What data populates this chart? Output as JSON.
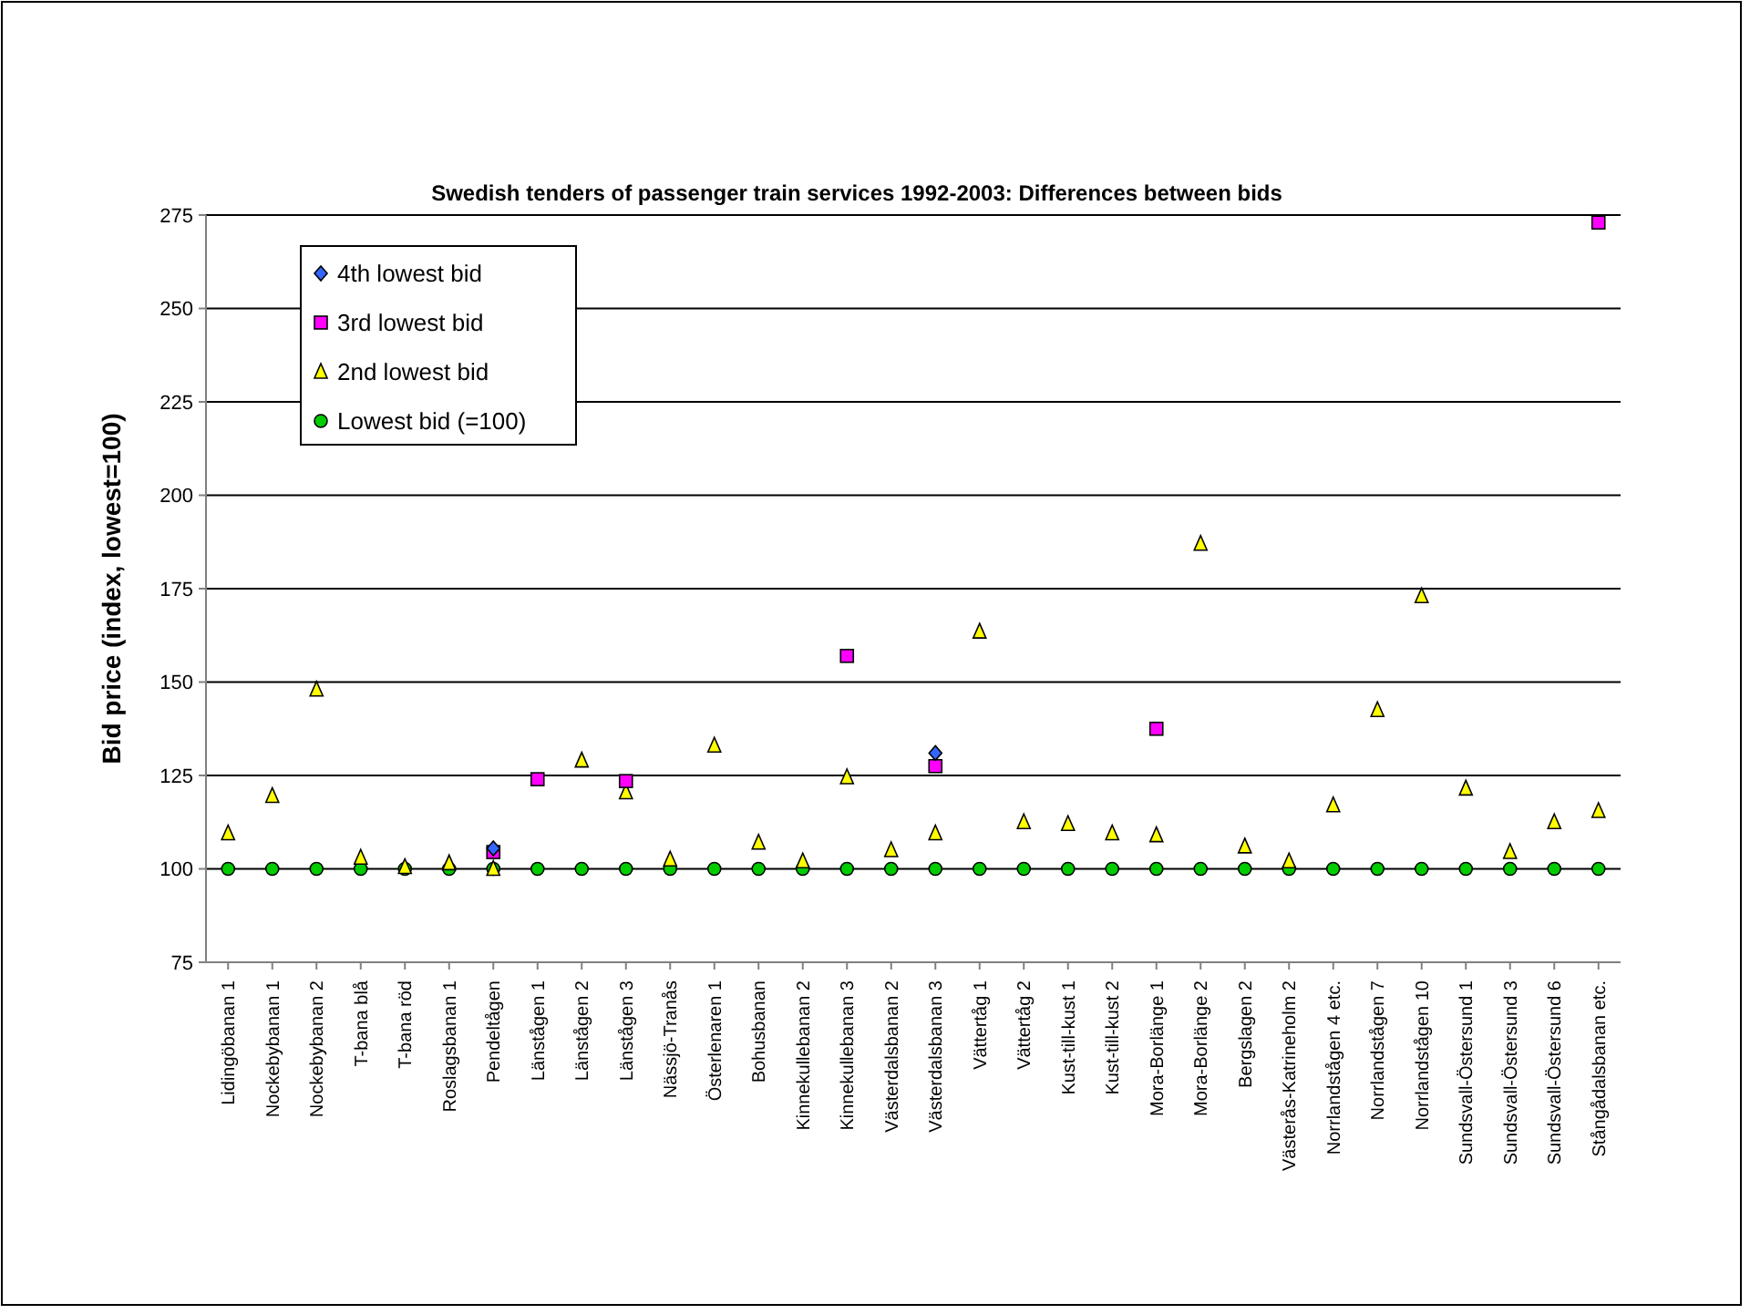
{
  "chart_data": {
    "type": "scatter",
    "title": "Swedish tenders of passenger train services 1992-2003: Differences between bids",
    "ylabel": "Bid price (index, lowest=100)",
    "categories": [
      "Lidingöbanan 1",
      "Nockebybanan 1",
      "Nockebybanan 2",
      "T-bana blå",
      "T-bana röd",
      "Roslagsbanan 1",
      "Pendeltågen",
      "Länstågen 1",
      "Länstågen 2",
      "Länstågen 3",
      "Nässjö-Tranås",
      "Österlenaren 1",
      "Bohusbanan",
      "Kinnekullebanan 2",
      "Kinnekullebanan 3",
      "Västerdalsbanan 2",
      "Västerdalsbanan 3",
      "Vättertåg 1",
      "Vättertåg 2",
      "Kust-till-kust 1",
      "Kust-till-kust 2",
      "Mora-Borlänge 1",
      "Mora-Borlänge 2",
      "Bergslagen 2",
      "Västerås-Katrineholm 2",
      "Norrlandstågen 4 etc.",
      "Norrlandstågen 7",
      "Norrlandstågen 10",
      "Sundsvall-Östersund 1",
      "Sundsvall-Östersund 3",
      "Sundsvall-Östersund 6",
      "Stångådalsbanan etc."
    ],
    "ylim": [
      75,
      275
    ],
    "yticks": [
      75,
      100,
      125,
      150,
      175,
      200,
      225,
      250,
      275
    ],
    "grid": "y",
    "legend": "top left",
    "series": [
      {
        "name": "4th lowest bid",
        "color": "#3366ff",
        "marker": "diamond",
        "values": [
          null,
          null,
          null,
          null,
          null,
          null,
          105.5,
          null,
          null,
          null,
          null,
          null,
          null,
          null,
          null,
          null,
          131,
          null,
          null,
          null,
          null,
          null,
          null,
          null,
          null,
          null,
          null,
          null,
          null,
          null,
          null,
          null
        ]
      },
      {
        "name": "3rd lowest bid",
        "color": "#ff00ff",
        "marker": "square",
        "values": [
          null,
          null,
          null,
          null,
          null,
          null,
          104.5,
          124,
          null,
          123.5,
          null,
          null,
          null,
          null,
          157,
          null,
          127.5,
          null,
          null,
          null,
          null,
          137.5,
          null,
          null,
          null,
          null,
          null,
          null,
          null,
          null,
          null,
          273
        ]
      },
      {
        "name": "2nd lowest bid",
        "color": "#ffff00",
        "marker": "triangle",
        "values": [
          109.5,
          119.5,
          148,
          103,
          100.5,
          101.5,
          100,
          null,
          129,
          120.5,
          102.5,
          133,
          107,
          102,
          124.5,
          105,
          109.5,
          163.5,
          112.5,
          112,
          109.5,
          109,
          187,
          106,
          102,
          117,
          142.5,
          173,
          121.5,
          104.5,
          112.5,
          115.5
        ]
      },
      {
        "name": "Lowest bid (=100)",
        "color": "#00cc00",
        "marker": "circle",
        "values": [
          100,
          100,
          100,
          100,
          100,
          100,
          100,
          100,
          100,
          100,
          100,
          100,
          100,
          100,
          100,
          100,
          100,
          100,
          100,
          100,
          100,
          100,
          100,
          100,
          100,
          100,
          100,
          100,
          100,
          100,
          100,
          100
        ]
      }
    ]
  }
}
